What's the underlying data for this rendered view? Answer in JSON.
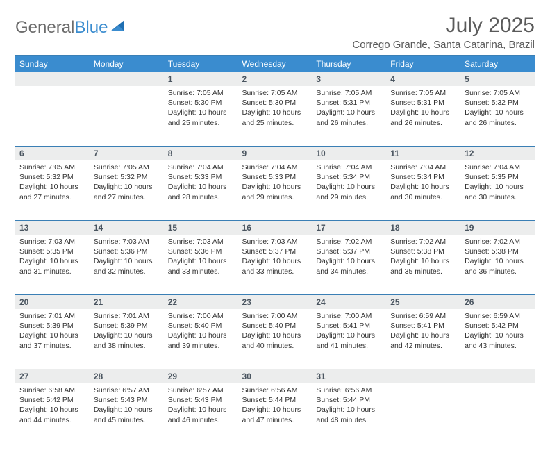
{
  "brand": {
    "part1": "General",
    "part2": "Blue"
  },
  "title": "July 2025",
  "location": "Corrego Grande, Santa Catarina, Brazil",
  "colors": {
    "header_bg": "#3a8ccf",
    "header_border": "#3a7fb5",
    "daynum_bg": "#eceded",
    "text": "#333333",
    "logo_gray": "#6b6b6b",
    "logo_blue": "#3a8ccf"
  },
  "weekdays": [
    "Sunday",
    "Monday",
    "Tuesday",
    "Wednesday",
    "Thursday",
    "Friday",
    "Saturday"
  ],
  "weeks": [
    [
      null,
      null,
      {
        "n": "1",
        "sr": "Sunrise: 7:05 AM",
        "ss": "Sunset: 5:30 PM",
        "d1": "Daylight: 10 hours",
        "d2": "and 25 minutes."
      },
      {
        "n": "2",
        "sr": "Sunrise: 7:05 AM",
        "ss": "Sunset: 5:30 PM",
        "d1": "Daylight: 10 hours",
        "d2": "and 25 minutes."
      },
      {
        "n": "3",
        "sr": "Sunrise: 7:05 AM",
        "ss": "Sunset: 5:31 PM",
        "d1": "Daylight: 10 hours",
        "d2": "and 26 minutes."
      },
      {
        "n": "4",
        "sr": "Sunrise: 7:05 AM",
        "ss": "Sunset: 5:31 PM",
        "d1": "Daylight: 10 hours",
        "d2": "and 26 minutes."
      },
      {
        "n": "5",
        "sr": "Sunrise: 7:05 AM",
        "ss": "Sunset: 5:32 PM",
        "d1": "Daylight: 10 hours",
        "d2": "and 26 minutes."
      }
    ],
    [
      {
        "n": "6",
        "sr": "Sunrise: 7:05 AM",
        "ss": "Sunset: 5:32 PM",
        "d1": "Daylight: 10 hours",
        "d2": "and 27 minutes."
      },
      {
        "n": "7",
        "sr": "Sunrise: 7:05 AM",
        "ss": "Sunset: 5:32 PM",
        "d1": "Daylight: 10 hours",
        "d2": "and 27 minutes."
      },
      {
        "n": "8",
        "sr": "Sunrise: 7:04 AM",
        "ss": "Sunset: 5:33 PM",
        "d1": "Daylight: 10 hours",
        "d2": "and 28 minutes."
      },
      {
        "n": "9",
        "sr": "Sunrise: 7:04 AM",
        "ss": "Sunset: 5:33 PM",
        "d1": "Daylight: 10 hours",
        "d2": "and 29 minutes."
      },
      {
        "n": "10",
        "sr": "Sunrise: 7:04 AM",
        "ss": "Sunset: 5:34 PM",
        "d1": "Daylight: 10 hours",
        "d2": "and 29 minutes."
      },
      {
        "n": "11",
        "sr": "Sunrise: 7:04 AM",
        "ss": "Sunset: 5:34 PM",
        "d1": "Daylight: 10 hours",
        "d2": "and 30 minutes."
      },
      {
        "n": "12",
        "sr": "Sunrise: 7:04 AM",
        "ss": "Sunset: 5:35 PM",
        "d1": "Daylight: 10 hours",
        "d2": "and 30 minutes."
      }
    ],
    [
      {
        "n": "13",
        "sr": "Sunrise: 7:03 AM",
        "ss": "Sunset: 5:35 PM",
        "d1": "Daylight: 10 hours",
        "d2": "and 31 minutes."
      },
      {
        "n": "14",
        "sr": "Sunrise: 7:03 AM",
        "ss": "Sunset: 5:36 PM",
        "d1": "Daylight: 10 hours",
        "d2": "and 32 minutes."
      },
      {
        "n": "15",
        "sr": "Sunrise: 7:03 AM",
        "ss": "Sunset: 5:36 PM",
        "d1": "Daylight: 10 hours",
        "d2": "and 33 minutes."
      },
      {
        "n": "16",
        "sr": "Sunrise: 7:03 AM",
        "ss": "Sunset: 5:37 PM",
        "d1": "Daylight: 10 hours",
        "d2": "and 33 minutes."
      },
      {
        "n": "17",
        "sr": "Sunrise: 7:02 AM",
        "ss": "Sunset: 5:37 PM",
        "d1": "Daylight: 10 hours",
        "d2": "and 34 minutes."
      },
      {
        "n": "18",
        "sr": "Sunrise: 7:02 AM",
        "ss": "Sunset: 5:38 PM",
        "d1": "Daylight: 10 hours",
        "d2": "and 35 minutes."
      },
      {
        "n": "19",
        "sr": "Sunrise: 7:02 AM",
        "ss": "Sunset: 5:38 PM",
        "d1": "Daylight: 10 hours",
        "d2": "and 36 minutes."
      }
    ],
    [
      {
        "n": "20",
        "sr": "Sunrise: 7:01 AM",
        "ss": "Sunset: 5:39 PM",
        "d1": "Daylight: 10 hours",
        "d2": "and 37 minutes."
      },
      {
        "n": "21",
        "sr": "Sunrise: 7:01 AM",
        "ss": "Sunset: 5:39 PM",
        "d1": "Daylight: 10 hours",
        "d2": "and 38 minutes."
      },
      {
        "n": "22",
        "sr": "Sunrise: 7:00 AM",
        "ss": "Sunset: 5:40 PM",
        "d1": "Daylight: 10 hours",
        "d2": "and 39 minutes."
      },
      {
        "n": "23",
        "sr": "Sunrise: 7:00 AM",
        "ss": "Sunset: 5:40 PM",
        "d1": "Daylight: 10 hours",
        "d2": "and 40 minutes."
      },
      {
        "n": "24",
        "sr": "Sunrise: 7:00 AM",
        "ss": "Sunset: 5:41 PM",
        "d1": "Daylight: 10 hours",
        "d2": "and 41 minutes."
      },
      {
        "n": "25",
        "sr": "Sunrise: 6:59 AM",
        "ss": "Sunset: 5:41 PM",
        "d1": "Daylight: 10 hours",
        "d2": "and 42 minutes."
      },
      {
        "n": "26",
        "sr": "Sunrise: 6:59 AM",
        "ss": "Sunset: 5:42 PM",
        "d1": "Daylight: 10 hours",
        "d2": "and 43 minutes."
      }
    ],
    [
      {
        "n": "27",
        "sr": "Sunrise: 6:58 AM",
        "ss": "Sunset: 5:42 PM",
        "d1": "Daylight: 10 hours",
        "d2": "and 44 minutes."
      },
      {
        "n": "28",
        "sr": "Sunrise: 6:57 AM",
        "ss": "Sunset: 5:43 PM",
        "d1": "Daylight: 10 hours",
        "d2": "and 45 minutes."
      },
      {
        "n": "29",
        "sr": "Sunrise: 6:57 AM",
        "ss": "Sunset: 5:43 PM",
        "d1": "Daylight: 10 hours",
        "d2": "and 46 minutes."
      },
      {
        "n": "30",
        "sr": "Sunrise: 6:56 AM",
        "ss": "Sunset: 5:44 PM",
        "d1": "Daylight: 10 hours",
        "d2": "and 47 minutes."
      },
      {
        "n": "31",
        "sr": "Sunrise: 6:56 AM",
        "ss": "Sunset: 5:44 PM",
        "d1": "Daylight: 10 hours",
        "d2": "and 48 minutes."
      },
      null,
      null
    ]
  ]
}
